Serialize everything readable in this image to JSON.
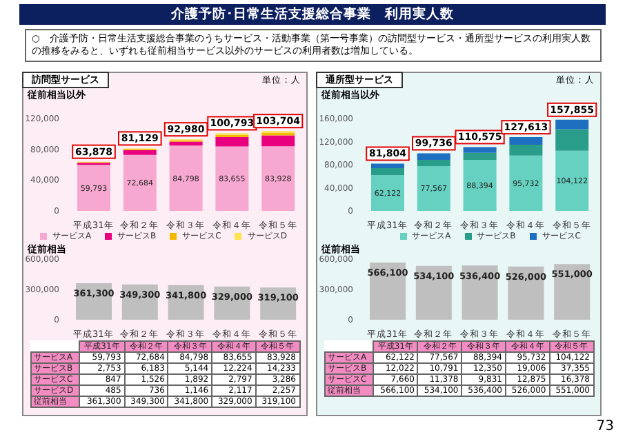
{
  "chart_data": [
    {
      "type": "bar",
      "title": "訪問型サービス",
      "subtitle": "従前相当以外",
      "annotations": [
        "介護予防･日常生活支援総合事業　利用実人数",
        "○　介護予防・日常生活支援総合事業のうちサービス・活動事業（第一号事業）の訪問型サービス・通所型サービスの利用実人数の推移をみると、いずれも従前相当サービス以外のサービスの利用者数は増加している。",
        "単位：人",
        "73"
      ],
      "categories": [
        "平成31年",
        "令和２年",
        "令和３年",
        "令和４年",
        "令和５年"
      ],
      "series": [
        {
          "name": "サービスA",
          "color": "#f7a8d0",
          "values": [
            59793,
            72684,
            84798,
            83655,
            83928
          ],
          "value_labels": [
            "59,793",
            "72,684",
            "84,798",
            "83,655",
            "83,928"
          ]
        },
        {
          "name": "サービスB",
          "color": "#e8007f",
          "values": [
            2753,
            6183,
            5144,
            12224,
            14233
          ],
          "value_labels": [
            "2,753",
            "6,183",
            "5,144",
            "12,224",
            "14,233"
          ]
        },
        {
          "name": "サービスC",
          "color": "#f5b800",
          "values": [
            847,
            1526,
            1892,
            2797,
            3286
          ],
          "value_labels": [
            "847",
            "1,526",
            "1,892",
            "2,797",
            "3,286"
          ]
        },
        {
          "name": "サービスD",
          "color": "#ffe34d",
          "values": [
            485,
            736,
            1146,
            2117,
            2257
          ],
          "value_labels": [
            "485",
            "736",
            "1,146",
            "2,117",
            "2,257"
          ]
        }
      ],
      "stacked": true,
      "totals": [
        "63,878",
        "81,129",
        "92,980",
        "100,793",
        "103,704"
      ],
      "ylim": [
        0,
        120000
      ],
      "yticks": [
        {
          "value": 0,
          "label": "0"
        },
        {
          "value": 40000,
          "label": "40,000"
        },
        {
          "value": 80000,
          "label": "80,000"
        },
        {
          "value": 120000,
          "label": "120,000"
        }
      ],
      "legend": "bottom"
    },
    {
      "type": "bar",
      "title": "従前相当",
      "categories": [
        "平成31年",
        "令和２年",
        "令和３年",
        "令和４年",
        "令和５年"
      ],
      "values": [
        361300,
        349300,
        341800,
        329000,
        319100
      ],
      "value_labels": [
        "361,300",
        "349,300",
        "341,800",
        "329,000",
        "319,100"
      ],
      "color": "#bfbfbf",
      "ylim": [
        0,
        600000
      ],
      "yticks": [
        {
          "value": 0,
          "label": "0"
        },
        {
          "value": 300000,
          "label": "300,000"
        },
        {
          "value": 600000,
          "label": "600,000"
        }
      ]
    },
    {
      "type": "bar",
      "title": "通所型サービス",
      "subtitle": "従前相当以外",
      "annotations": [
        "単位：人"
      ],
      "categories": [
        "平成31年",
        "令和２年",
        "令和３年",
        "令和４年",
        "令和５年"
      ],
      "series": [
        {
          "name": "サービスA",
          "color": "#66d1c1",
          "values": [
            62122,
            77567,
            88394,
            95732,
            104122
          ],
          "value_labels": [
            "62,122",
            "77,567",
            "88,394",
            "95,732",
            "104,122"
          ]
        },
        {
          "name": "サービスB",
          "color": "#2a9d8a",
          "values": [
            12022,
            10791,
            12350,
            19006,
            37355
          ],
          "value_labels": [
            "12,022",
            "10,791",
            "12,350",
            "19,006",
            "37,355"
          ]
        },
        {
          "name": "サービスC",
          "color": "#1f6fc0",
          "values": [
            7660,
            11378,
            9831,
            12875,
            16378
          ],
          "value_labels": [
            "7,660",
            "11,378",
            "9,831",
            "12,875",
            "16,378"
          ]
        }
      ],
      "stacked": true,
      "totals": [
        "81,804",
        "99,736",
        "110,575",
        "127,613",
        "157,855"
      ],
      "ylim": [
        0,
        160000
      ],
      "yticks": [
        {
          "value": 0,
          "label": "0"
        },
        {
          "value": 40000,
          "label": "40,000"
        },
        {
          "value": 80000,
          "label": "80,000"
        },
        {
          "value": 120000,
          "label": "120,000"
        },
        {
          "value": 160000,
          "label": "160,000"
        }
      ],
      "legend": "bottom"
    },
    {
      "type": "bar",
      "title": "従前相当",
      "categories": [
        "平成31年",
        "令和２年",
        "令和３年",
        "令和４年",
        "令和５年"
      ],
      "values": [
        566100,
        534100,
        536400,
        526000,
        551000
      ],
      "value_labels": [
        "566,100",
        "534,100",
        "536,400",
        "526,000",
        "551,000"
      ],
      "color": "#bfbfbf",
      "ylim": [
        0,
        600000
      ],
      "yticks": [
        {
          "value": 0,
          "label": "0"
        },
        {
          "value": 300000,
          "label": "300,000"
        },
        {
          "value": 600000,
          "label": "600,000"
        }
      ]
    }
  ]
}
